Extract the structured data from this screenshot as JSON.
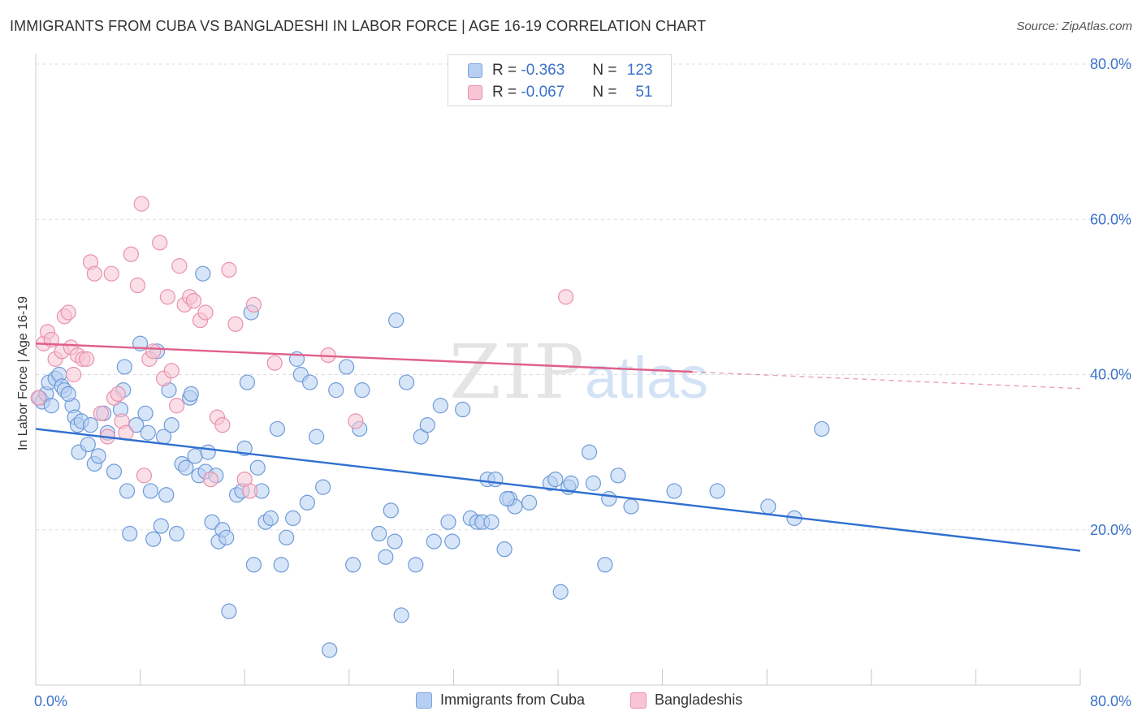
{
  "header": {
    "title": "IMMIGRANTS FROM CUBA VS BANGLADESHI IN LABOR FORCE | AGE 16-19 CORRELATION CHART",
    "source": "Source: ZipAtlas.com"
  },
  "watermark": {
    "zip": "ZIP",
    "atlas": "atlas"
  },
  "legend_top": {
    "rows": [
      {
        "r_label": "R =",
        "r_value": "-0.363",
        "n_label": "N =",
        "n_value": "123"
      },
      {
        "r_label": "R =",
        "r_value": "-0.067",
        "n_label": "N =",
        "n_value": "51"
      }
    ]
  },
  "colors": {
    "blue_fill": "#b7cff2",
    "blue_stroke": "#6f9bd8",
    "blue_line": "#2f6fd0",
    "pink_fill": "#f8c4d4",
    "pink_stroke": "#e991ad",
    "pink_line": "#e0608a",
    "tick_text": "#3a72c8",
    "grid": "#dddddd"
  },
  "chart_data": {
    "type": "scatter",
    "title": "IMMIGRANTS FROM CUBA VS BANGLADESHI IN LABOR FORCE | AGE 16-19 CORRELATION CHART",
    "xlabel": "",
    "ylabel": "In Labor Force | Age 16-19",
    "xlim": [
      0,
      80
    ],
    "ylim": [
      0,
      80
    ],
    "x_tick_labels": [
      "0.0%",
      "80.0%"
    ],
    "y_ticks": [
      20,
      40,
      60,
      80
    ],
    "y_tick_labels": [
      "20.0%",
      "40.0%",
      "60.0%",
      "80.0%"
    ],
    "grid": true,
    "legend_position": "bottom",
    "series": [
      {
        "name": "Immigrants from Cuba",
        "color": "#b7cff2",
        "r": -0.363,
        "n": 123,
        "trend": {
          "x": [
            0,
            80
          ],
          "y": [
            33.0,
            17.3
          ],
          "dashed_from": null
        },
        "points": [
          [
            0.3,
            37.0
          ],
          [
            0.5,
            36.5
          ],
          [
            0.8,
            37.5
          ],
          [
            1.0,
            39.0
          ],
          [
            1.2,
            36.0
          ],
          [
            1.5,
            39.5
          ],
          [
            1.8,
            40.0
          ],
          [
            2.0,
            38.5
          ],
          [
            2.2,
            38.0
          ],
          [
            2.8,
            36.0
          ],
          [
            2.5,
            37.5
          ],
          [
            3.0,
            34.5
          ],
          [
            3.2,
            33.5
          ],
          [
            3.5,
            34.0
          ],
          [
            3.3,
            30.0
          ],
          [
            4.0,
            31.0
          ],
          [
            4.2,
            33.5
          ],
          [
            4.5,
            28.5
          ],
          [
            4.8,
            29.5
          ],
          [
            5.2,
            35.0
          ],
          [
            5.5,
            32.5
          ],
          [
            6.0,
            27.5
          ],
          [
            6.5,
            35.5
          ],
          [
            6.7,
            38.0
          ],
          [
            6.8,
            41.0
          ],
          [
            7.0,
            25.0
          ],
          [
            7.2,
            19.5
          ],
          [
            7.7,
            33.5
          ],
          [
            8.0,
            44.0
          ],
          [
            8.4,
            35.0
          ],
          [
            8.6,
            32.5
          ],
          [
            8.8,
            25.0
          ],
          [
            9.0,
            18.8
          ],
          [
            9.3,
            43.0
          ],
          [
            9.6,
            20.5
          ],
          [
            9.8,
            32.0
          ],
          [
            10.2,
            38.0
          ],
          [
            10.4,
            33.5
          ],
          [
            10.8,
            19.5
          ],
          [
            11.2,
            28.5
          ],
          [
            11.5,
            28.0
          ],
          [
            11.8,
            37.0
          ],
          [
            11.9,
            37.5
          ],
          [
            12.2,
            29.5
          ],
          [
            12.5,
            27.0
          ],
          [
            12.8,
            53.0
          ],
          [
            13.0,
            27.5
          ],
          [
            13.2,
            30.0
          ],
          [
            13.5,
            21.0
          ],
          [
            13.8,
            27.0
          ],
          [
            14.0,
            18.5
          ],
          [
            14.3,
            20.0
          ],
          [
            14.6,
            19.0
          ],
          [
            14.8,
            9.5
          ],
          [
            15.4,
            24.5
          ],
          [
            15.8,
            25.0
          ],
          [
            16.0,
            30.5
          ],
          [
            16.2,
            39.0
          ],
          [
            16.5,
            48.0
          ],
          [
            16.7,
            15.5
          ],
          [
            17.0,
            28.0
          ],
          [
            17.6,
            21.0
          ],
          [
            18.0,
            21.5
          ],
          [
            18.5,
            33.0
          ],
          [
            18.8,
            15.5
          ],
          [
            19.2,
            19.0
          ],
          [
            19.7,
            21.5
          ],
          [
            20.0,
            42.0
          ],
          [
            20.3,
            40.0
          ],
          [
            20.8,
            23.5
          ],
          [
            21.0,
            39.0
          ],
          [
            21.5,
            32.0
          ],
          [
            22.0,
            25.5
          ],
          [
            22.5,
            4.5
          ],
          [
            23.0,
            38.0
          ],
          [
            23.8,
            41.0
          ],
          [
            24.3,
            15.5
          ],
          [
            24.8,
            33.0
          ],
          [
            25.0,
            38.0
          ],
          [
            26.3,
            19.5
          ],
          [
            26.8,
            16.5
          ],
          [
            27.5,
            18.5
          ],
          [
            27.2,
            22.5
          ],
          [
            27.6,
            47.0
          ],
          [
            28.0,
            9.0
          ],
          [
            28.4,
            39.0
          ],
          [
            29.1,
            15.5
          ],
          [
            29.5,
            32.0
          ],
          [
            30.0,
            33.5
          ],
          [
            30.5,
            18.5
          ],
          [
            31.0,
            36.0
          ],
          [
            31.6,
            21.0
          ],
          [
            31.9,
            18.5
          ],
          [
            32.7,
            35.5
          ],
          [
            33.3,
            21.5
          ],
          [
            33.8,
            21.0
          ],
          [
            34.2,
            21.0
          ],
          [
            34.6,
            26.5
          ],
          [
            34.9,
            21.0
          ],
          [
            35.2,
            26.5
          ],
          [
            35.9,
            17.5
          ],
          [
            36.3,
            24.0
          ],
          [
            36.7,
            23.0
          ],
          [
            37.8,
            23.5
          ],
          [
            39.4,
            26.0
          ],
          [
            39.8,
            26.5
          ],
          [
            40.2,
            12.0
          ],
          [
            40.8,
            25.5
          ],
          [
            41.0,
            26.0
          ],
          [
            42.4,
            30.0
          ],
          [
            42.7,
            26.0
          ],
          [
            43.6,
            15.5
          ],
          [
            43.9,
            24.0
          ],
          [
            44.6,
            27.0
          ],
          [
            45.6,
            23.0
          ],
          [
            48.9,
            25.0
          ],
          [
            52.2,
            25.0
          ],
          [
            56.1,
            23.0
          ],
          [
            58.1,
            21.5
          ],
          [
            60.2,
            33.0
          ],
          [
            36.1,
            24.0
          ],
          [
            17.3,
            25.0
          ],
          [
            10.0,
            24.5
          ]
        ]
      },
      {
        "name": "Bangladeshis",
        "color": "#f8c4d4",
        "r": -0.067,
        "n": 51,
        "trend": {
          "x": [
            0,
            80
          ],
          "y": [
            44.0,
            38.2
          ],
          "dashed_from": 50.3
        },
        "points": [
          [
            0.2,
            37.0
          ],
          [
            0.6,
            44.0
          ],
          [
            0.9,
            45.5
          ],
          [
            1.2,
            44.5
          ],
          [
            1.5,
            42.0
          ],
          [
            2.0,
            43.0
          ],
          [
            2.2,
            47.5
          ],
          [
            2.5,
            48.0
          ],
          [
            2.7,
            43.5
          ],
          [
            2.9,
            40.0
          ],
          [
            3.2,
            42.5
          ],
          [
            3.6,
            42.0
          ],
          [
            3.9,
            42.0
          ],
          [
            4.2,
            54.5
          ],
          [
            4.5,
            53.0
          ],
          [
            5.0,
            35.0
          ],
          [
            5.5,
            32.0
          ],
          [
            5.8,
            53.0
          ],
          [
            6.0,
            37.0
          ],
          [
            6.3,
            37.5
          ],
          [
            6.6,
            34.0
          ],
          [
            6.9,
            32.5
          ],
          [
            7.3,
            55.5
          ],
          [
            7.8,
            51.5
          ],
          [
            8.1,
            62.0
          ],
          [
            8.3,
            27.0
          ],
          [
            8.7,
            42.0
          ],
          [
            9.0,
            43.0
          ],
          [
            9.5,
            57.0
          ],
          [
            9.8,
            39.5
          ],
          [
            10.1,
            50.0
          ],
          [
            10.4,
            40.5
          ],
          [
            10.8,
            36.0
          ],
          [
            11.0,
            54.0
          ],
          [
            11.4,
            49.0
          ],
          [
            11.8,
            50.0
          ],
          [
            12.1,
            49.5
          ],
          [
            12.6,
            47.0
          ],
          [
            13.0,
            48.0
          ],
          [
            13.4,
            26.5
          ],
          [
            13.9,
            34.5
          ],
          [
            14.3,
            33.5
          ],
          [
            14.8,
            53.5
          ],
          [
            15.3,
            46.5
          ],
          [
            16.0,
            26.5
          ],
          [
            16.4,
            25.0
          ],
          [
            16.7,
            49.0
          ],
          [
            18.3,
            41.5
          ],
          [
            22.4,
            42.5
          ],
          [
            24.5,
            34.0
          ],
          [
            40.6,
            50.0
          ]
        ]
      }
    ]
  },
  "bottom_legend": {
    "items": [
      {
        "label": "Immigrants from Cuba"
      },
      {
        "label": "Bangladeshis"
      }
    ]
  }
}
